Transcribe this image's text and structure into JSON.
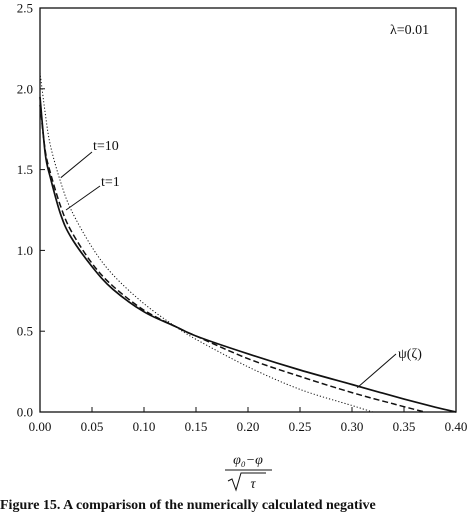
{
  "chart_data": {
    "type": "line",
    "title": "",
    "xlabel": "(φ₀−φ)/√τ",
    "xlabel_parts": {
      "numerator": "φ₀−φ",
      "denominator": "τ"
    },
    "ylabel": "",
    "xlim": [
      0.0,
      0.4
    ],
    "ylim": [
      0.0,
      2.5
    ],
    "x_ticks": [
      "0.00",
      "0.05",
      "0.10",
      "0.15",
      "0.20",
      "0.25",
      "0.30",
      "0.35",
      "0.40"
    ],
    "y_ticks": [
      "0.0",
      "0.5",
      "1.0",
      "1.5",
      "2.0",
      "2.5"
    ],
    "grid": false,
    "legend": "none",
    "series": [
      {
        "name": "ψ(ζ)",
        "style": "solid",
        "x": [
          0.0,
          0.005,
          0.01,
          0.02,
          0.03,
          0.05,
          0.07,
          0.1,
          0.13,
          0.15,
          0.2,
          0.25,
          0.3,
          0.35,
          0.38,
          0.4
        ],
        "y": [
          1.95,
          1.6,
          1.45,
          1.22,
          1.08,
          0.9,
          0.76,
          0.62,
          0.53,
          0.47,
          0.36,
          0.26,
          0.17,
          0.08,
          0.03,
          0.0
        ]
      },
      {
        "name": "t=1",
        "style": "dashed",
        "x": [
          0.0,
          0.005,
          0.01,
          0.02,
          0.03,
          0.05,
          0.07,
          0.1,
          0.13,
          0.15,
          0.2,
          0.25,
          0.3,
          0.34,
          0.37
        ],
        "y": [
          1.9,
          1.62,
          1.48,
          1.27,
          1.12,
          0.92,
          0.78,
          0.63,
          0.53,
          0.47,
          0.33,
          0.22,
          0.12,
          0.05,
          0.0
        ]
      },
      {
        "name": "t=10",
        "style": "dotted",
        "x": [
          0.0,
          0.005,
          0.01,
          0.02,
          0.03,
          0.05,
          0.07,
          0.1,
          0.13,
          0.15,
          0.2,
          0.25,
          0.3,
          0.32
        ],
        "y": [
          2.1,
          1.85,
          1.65,
          1.42,
          1.25,
          1.02,
          0.85,
          0.67,
          0.53,
          0.45,
          0.28,
          0.14,
          0.04,
          0.0
        ]
      }
    ],
    "annotations": [
      {
        "text": "λ=0.01"
      },
      {
        "text": "t=10",
        "points_to": [
          0.02,
          1.45
        ]
      },
      {
        "text": "t=1",
        "points_to": [
          0.025,
          1.25
        ]
      },
      {
        "text": "ψ(ζ)",
        "points_to": [
          0.305,
          0.15
        ]
      }
    ]
  },
  "caption": "Figure 15. A comparison of the numerically calculated negative"
}
